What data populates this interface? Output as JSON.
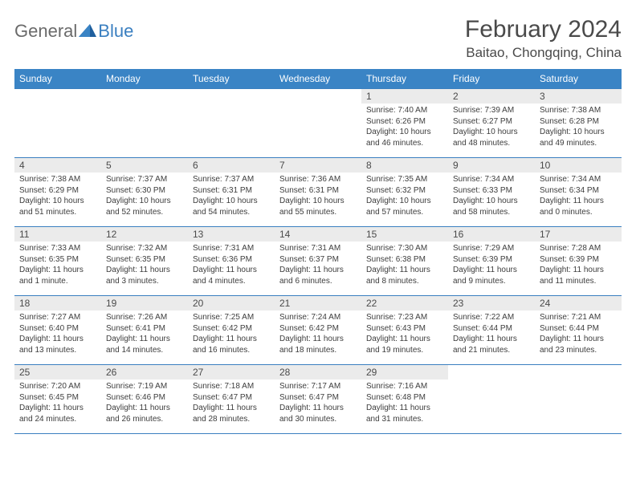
{
  "brand": {
    "part1": "General",
    "part2": "Blue"
  },
  "title": "February 2024",
  "location": "Baitao, Chongqing, China",
  "colors": {
    "header_bg": "#3a84c5",
    "border": "#3a7fc0",
    "daynum_bg": "#ebebeb",
    "text": "#333333",
    "logo_gray": "#6a6a6a",
    "logo_blue": "#3a7fc0"
  },
  "weekdays": [
    "Sunday",
    "Monday",
    "Tuesday",
    "Wednesday",
    "Thursday",
    "Friday",
    "Saturday"
  ],
  "weeks": [
    [
      {
        "n": "",
        "sr": "",
        "ss": "",
        "dl": "",
        "empty": true
      },
      {
        "n": "",
        "sr": "",
        "ss": "",
        "dl": "",
        "empty": true
      },
      {
        "n": "",
        "sr": "",
        "ss": "",
        "dl": "",
        "empty": true
      },
      {
        "n": "",
        "sr": "",
        "ss": "",
        "dl": "",
        "empty": true
      },
      {
        "n": "1",
        "sr": "Sunrise: 7:40 AM",
        "ss": "Sunset: 6:26 PM",
        "dl": "Daylight: 10 hours and 46 minutes."
      },
      {
        "n": "2",
        "sr": "Sunrise: 7:39 AM",
        "ss": "Sunset: 6:27 PM",
        "dl": "Daylight: 10 hours and 48 minutes."
      },
      {
        "n": "3",
        "sr": "Sunrise: 7:38 AM",
        "ss": "Sunset: 6:28 PM",
        "dl": "Daylight: 10 hours and 49 minutes."
      }
    ],
    [
      {
        "n": "4",
        "sr": "Sunrise: 7:38 AM",
        "ss": "Sunset: 6:29 PM",
        "dl": "Daylight: 10 hours and 51 minutes."
      },
      {
        "n": "5",
        "sr": "Sunrise: 7:37 AM",
        "ss": "Sunset: 6:30 PM",
        "dl": "Daylight: 10 hours and 52 minutes."
      },
      {
        "n": "6",
        "sr": "Sunrise: 7:37 AM",
        "ss": "Sunset: 6:31 PM",
        "dl": "Daylight: 10 hours and 54 minutes."
      },
      {
        "n": "7",
        "sr": "Sunrise: 7:36 AM",
        "ss": "Sunset: 6:31 PM",
        "dl": "Daylight: 10 hours and 55 minutes."
      },
      {
        "n": "8",
        "sr": "Sunrise: 7:35 AM",
        "ss": "Sunset: 6:32 PM",
        "dl": "Daylight: 10 hours and 57 minutes."
      },
      {
        "n": "9",
        "sr": "Sunrise: 7:34 AM",
        "ss": "Sunset: 6:33 PM",
        "dl": "Daylight: 10 hours and 58 minutes."
      },
      {
        "n": "10",
        "sr": "Sunrise: 7:34 AM",
        "ss": "Sunset: 6:34 PM",
        "dl": "Daylight: 11 hours and 0 minutes."
      }
    ],
    [
      {
        "n": "11",
        "sr": "Sunrise: 7:33 AM",
        "ss": "Sunset: 6:35 PM",
        "dl": "Daylight: 11 hours and 1 minute."
      },
      {
        "n": "12",
        "sr": "Sunrise: 7:32 AM",
        "ss": "Sunset: 6:35 PM",
        "dl": "Daylight: 11 hours and 3 minutes."
      },
      {
        "n": "13",
        "sr": "Sunrise: 7:31 AM",
        "ss": "Sunset: 6:36 PM",
        "dl": "Daylight: 11 hours and 4 minutes."
      },
      {
        "n": "14",
        "sr": "Sunrise: 7:31 AM",
        "ss": "Sunset: 6:37 PM",
        "dl": "Daylight: 11 hours and 6 minutes."
      },
      {
        "n": "15",
        "sr": "Sunrise: 7:30 AM",
        "ss": "Sunset: 6:38 PM",
        "dl": "Daylight: 11 hours and 8 minutes."
      },
      {
        "n": "16",
        "sr": "Sunrise: 7:29 AM",
        "ss": "Sunset: 6:39 PM",
        "dl": "Daylight: 11 hours and 9 minutes."
      },
      {
        "n": "17",
        "sr": "Sunrise: 7:28 AM",
        "ss": "Sunset: 6:39 PM",
        "dl": "Daylight: 11 hours and 11 minutes."
      }
    ],
    [
      {
        "n": "18",
        "sr": "Sunrise: 7:27 AM",
        "ss": "Sunset: 6:40 PM",
        "dl": "Daylight: 11 hours and 13 minutes."
      },
      {
        "n": "19",
        "sr": "Sunrise: 7:26 AM",
        "ss": "Sunset: 6:41 PM",
        "dl": "Daylight: 11 hours and 14 minutes."
      },
      {
        "n": "20",
        "sr": "Sunrise: 7:25 AM",
        "ss": "Sunset: 6:42 PM",
        "dl": "Daylight: 11 hours and 16 minutes."
      },
      {
        "n": "21",
        "sr": "Sunrise: 7:24 AM",
        "ss": "Sunset: 6:42 PM",
        "dl": "Daylight: 11 hours and 18 minutes."
      },
      {
        "n": "22",
        "sr": "Sunrise: 7:23 AM",
        "ss": "Sunset: 6:43 PM",
        "dl": "Daylight: 11 hours and 19 minutes."
      },
      {
        "n": "23",
        "sr": "Sunrise: 7:22 AM",
        "ss": "Sunset: 6:44 PM",
        "dl": "Daylight: 11 hours and 21 minutes."
      },
      {
        "n": "24",
        "sr": "Sunrise: 7:21 AM",
        "ss": "Sunset: 6:44 PM",
        "dl": "Daylight: 11 hours and 23 minutes."
      }
    ],
    [
      {
        "n": "25",
        "sr": "Sunrise: 7:20 AM",
        "ss": "Sunset: 6:45 PM",
        "dl": "Daylight: 11 hours and 24 minutes."
      },
      {
        "n": "26",
        "sr": "Sunrise: 7:19 AM",
        "ss": "Sunset: 6:46 PM",
        "dl": "Daylight: 11 hours and 26 minutes."
      },
      {
        "n": "27",
        "sr": "Sunrise: 7:18 AM",
        "ss": "Sunset: 6:47 PM",
        "dl": "Daylight: 11 hours and 28 minutes."
      },
      {
        "n": "28",
        "sr": "Sunrise: 7:17 AM",
        "ss": "Sunset: 6:47 PM",
        "dl": "Daylight: 11 hours and 30 minutes."
      },
      {
        "n": "29",
        "sr": "Sunrise: 7:16 AM",
        "ss": "Sunset: 6:48 PM",
        "dl": "Daylight: 11 hours and 31 minutes."
      },
      {
        "n": "",
        "sr": "",
        "ss": "",
        "dl": "",
        "empty": true
      },
      {
        "n": "",
        "sr": "",
        "ss": "",
        "dl": "",
        "empty": true
      }
    ]
  ]
}
